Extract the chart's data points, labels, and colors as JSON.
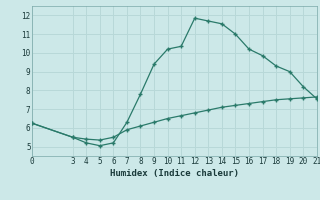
{
  "xlabel": "Humidex (Indice chaleur)",
  "bg_color": "#cce8e8",
  "grid_color": "#b8d8d8",
  "line_color": "#2a7a6a",
  "curve1_x": [
    0,
    3,
    4,
    5,
    6,
    7,
    8,
    9,
    10,
    11,
    12,
    13,
    14,
    15,
    16,
    17,
    18,
    19,
    20,
    21
  ],
  "curve1_y": [
    6.25,
    5.5,
    5.2,
    5.05,
    5.2,
    6.3,
    7.8,
    9.4,
    10.2,
    10.35,
    11.85,
    11.7,
    11.55,
    11.0,
    10.2,
    9.85,
    9.3,
    9.0,
    8.2,
    7.55
  ],
  "curve2_x": [
    0,
    3,
    4,
    5,
    6,
    7,
    8,
    9,
    10,
    11,
    12,
    13,
    14,
    15,
    16,
    17,
    18,
    19,
    20,
    21
  ],
  "curve2_y": [
    6.25,
    5.5,
    5.4,
    5.35,
    5.5,
    5.9,
    6.1,
    6.3,
    6.5,
    6.65,
    6.8,
    6.95,
    7.1,
    7.2,
    7.3,
    7.4,
    7.5,
    7.55,
    7.6,
    7.65
  ],
  "xlim": [
    0,
    21
  ],
  "ylim": [
    4.5,
    12.5
  ],
  "yticks": [
    5,
    6,
    7,
    8,
    9,
    10,
    11,
    12
  ],
  "xticks": [
    0,
    3,
    4,
    5,
    6,
    7,
    8,
    9,
    10,
    11,
    12,
    13,
    14,
    15,
    16,
    17,
    18,
    19,
    20,
    21
  ]
}
